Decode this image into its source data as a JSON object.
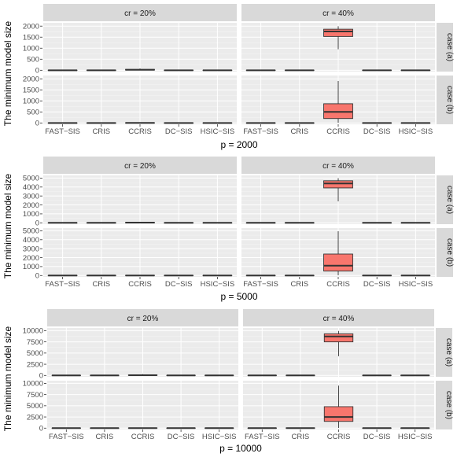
{
  "chart_data": [
    {
      "type": "boxplot",
      "xlabel": "p = 2000",
      "ylabel": "The minimum model size",
      "col_facets": [
        "cr = 20%",
        "cr = 40%"
      ],
      "row_facets": [
        "case (a)",
        "case (b)"
      ],
      "categories": [
        "FAST−SIS",
        "CRIS",
        "CCRIS",
        "DC−SIS",
        "HSIC−SIS"
      ],
      "box_color": "#F8766D",
      "rows": [
        {
          "ylim": [
            -60,
            2150
          ],
          "yticks": [
            0,
            500,
            1000,
            1500,
            2000
          ],
          "panels": [
            {
              "boxes": [
                [
                  0,
                  0,
                  0,
                  0,
                  2
                ],
                [
                  0,
                  0,
                  0,
                  0,
                  2
                ],
                [
                  0,
                  10,
                  20,
                  40,
                  80
                ],
                [
                  0,
                  0,
                  0,
                  0,
                  2
                ],
                [
                  0,
                  0,
                  0,
                  0,
                  2
                ]
              ]
            },
            {
              "boxes": [
                [
                  0,
                  0,
                  0,
                  0,
                  2
                ],
                [
                  0,
                  0,
                  0,
                  0,
                  2
                ],
                [
                  950,
                  1530,
                  1760,
                  1860,
                  1995
                ],
                [
                  0,
                  0,
                  0,
                  0,
                  2
                ],
                [
                  0,
                  0,
                  0,
                  0,
                  2
                ]
              ]
            }
          ]
        },
        {
          "ylim": [
            -60,
            2150
          ],
          "yticks": [
            0,
            500,
            1000,
            1500,
            2000
          ],
          "panels": [
            {
              "boxes": [
                [
                  0,
                  0,
                  0,
                  0,
                  2
                ],
                [
                  0,
                  0,
                  0,
                  0,
                  2
                ],
                [
                  0,
                  0,
                  2,
                  6,
                  20
                ],
                [
                  0,
                  0,
                  0,
                  0,
                  2
                ],
                [
                  0,
                  0,
                  0,
                  0,
                  2
                ]
              ]
            },
            {
              "boxes": [
                [
                  0,
                  0,
                  0,
                  0,
                  2
                ],
                [
                  0,
                  0,
                  0,
                  0,
                  2
                ],
                [
                  10,
                  200,
                  500,
                  870,
                  1900
                ],
                [
                  0,
                  0,
                  0,
                  0,
                  2
                ],
                [
                  0,
                  0,
                  0,
                  0,
                  2
                ]
              ]
            }
          ]
        }
      ]
    },
    {
      "type": "boxplot",
      "xlabel": "p = 5000",
      "ylabel": "The minimum model size",
      "col_facets": [
        "cr = 20%",
        "cr = 40%"
      ],
      "row_facets": [
        "case (a)",
        "case (b)"
      ],
      "categories": [
        "FAST−SIS",
        "CRIS",
        "CCRIS",
        "DC−SIS",
        "HSIC−SIS"
      ],
      "box_color": "#F8766D",
      "rows": [
        {
          "ylim": [
            -150,
            5300
          ],
          "yticks": [
            0,
            1000,
            2000,
            3000,
            4000,
            5000
          ],
          "panels": [
            {
              "boxes": [
                [
                  0,
                  0,
                  0,
                  0,
                  5
                ],
                [
                  0,
                  0,
                  0,
                  0,
                  5
                ],
                [
                  0,
                  10,
                  25,
                  50,
                  100
                ],
                [
                  0,
                  0,
                  0,
                  0,
                  5
                ],
                [
                  0,
                  0,
                  0,
                  0,
                  5
                ]
              ]
            },
            {
              "boxes": [
                [
                  0,
                  0,
                  0,
                  0,
                  5
                ],
                [
                  0,
                  0,
                  0,
                  0,
                  5
                ],
                [
                  2400,
                  3900,
                  4400,
                  4700,
                  4990
                ],
                [
                  0,
                  0,
                  0,
                  0,
                  5
                ],
                [
                  0,
                  0,
                  0,
                  0,
                  5
                ]
              ]
            }
          ]
        },
        {
          "ylim": [
            -150,
            5300
          ],
          "yticks": [
            0,
            1000,
            2000,
            3000,
            4000,
            5000
          ],
          "panels": [
            {
              "boxes": [
                [
                  0,
                  0,
                  0,
                  0,
                  5
                ],
                [
                  0,
                  0,
                  0,
                  0,
                  5
                ],
                [
                  0,
                  0,
                  5,
                  15,
                  60
                ],
                [
                  0,
                  0,
                  0,
                  0,
                  5
                ],
                [
                  0,
                  0,
                  0,
                  0,
                  5
                ]
              ]
            },
            {
              "boxes": [
                [
                  0,
                  0,
                  0,
                  0,
                  5
                ],
                [
                  0,
                  0,
                  0,
                  0,
                  30
                ],
                [
                  30,
                  500,
                  1100,
                  2400,
                  4950
                ],
                [
                  0,
                  0,
                  0,
                  0,
                  5
                ],
                [
                  0,
                  0,
                  0,
                  0,
                  5
                ]
              ]
            }
          ]
        }
      ]
    },
    {
      "type": "boxplot",
      "xlabel": "p = 10000",
      "ylabel": "The minimum model size",
      "col_facets": [
        "cr = 20%",
        "cr = 40%"
      ],
      "row_facets": [
        "case (a)",
        "case (b)"
      ],
      "categories": [
        "FAST−SIS",
        "CRIS",
        "CCRIS",
        "DC−SIS",
        "HSIC−SIS"
      ],
      "box_color": "#F8766D",
      "rows": [
        {
          "ylim": [
            -300,
            10600
          ],
          "yticks": [
            0,
            2500,
            5000,
            7500,
            10000
          ],
          "panels": [
            {
              "boxes": [
                [
                  0,
                  0,
                  0,
                  0,
                  10
                ],
                [
                  0,
                  0,
                  0,
                  0,
                  10
                ],
                [
                  0,
                  20,
                  50,
                  100,
                  300
                ],
                [
                  0,
                  0,
                  0,
                  0,
                  10
                ],
                [
                  0,
                  0,
                  0,
                  0,
                  10
                ]
              ]
            },
            {
              "boxes": [
                [
                  0,
                  0,
                  0,
                  0,
                  10
                ],
                [
                  0,
                  0,
                  0,
                  0,
                  10
                ],
                [
                  4300,
                  7500,
                  8700,
                  9300,
                  9950
                ],
                [
                  0,
                  0,
                  0,
                  0,
                  10
                ],
                [
                  0,
                  0,
                  0,
                  0,
                  10
                ]
              ]
            }
          ]
        },
        {
          "ylim": [
            -300,
            10600
          ],
          "yticks": [
            0,
            2500,
            5000,
            7500,
            10000
          ],
          "panels": [
            {
              "boxes": [
                [
                  0,
                  0,
                  0,
                  0,
                  10
                ],
                [
                  0,
                  0,
                  0,
                  0,
                  10
                ],
                [
                  0,
                  0,
                  10,
                  30,
                  120
                ],
                [
                  0,
                  0,
                  0,
                  0,
                  10
                ],
                [
                  0,
                  0,
                  0,
                  0,
                  10
                ]
              ]
            },
            {
              "boxes": [
                [
                  0,
                  0,
                  0,
                  0,
                  10
                ],
                [
                  0,
                  0,
                  10,
                  40,
                  120
                ],
                [
                  50,
                  1500,
                  2500,
                  4800,
                  9500
                ],
                [
                  0,
                  0,
                  0,
                  0,
                  10
                ],
                [
                  0,
                  0,
                  0,
                  0,
                  10
                ]
              ]
            }
          ]
        }
      ]
    }
  ]
}
